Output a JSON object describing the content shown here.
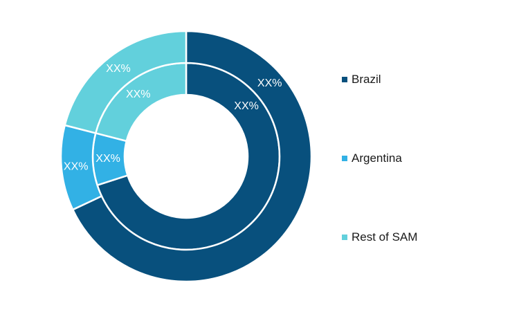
{
  "chart_data": {
    "type": "pie",
    "style": "nested-donut",
    "categories": [
      "Brazil",
      "Argentina",
      "Rest of SAM"
    ],
    "colors": [
      "#08507d",
      "#32b1e5",
      "#62d0dc"
    ],
    "rings": [
      {
        "values": [
          70,
          9,
          21
        ],
        "labels": [
          "XX%",
          "XX%",
          "XX%"
        ]
      },
      {
        "values": [
          68,
          11,
          21
        ],
        "labels": [
          "XX%",
          "XX%",
          "XX%"
        ]
      }
    ],
    "legend_position": "right"
  }
}
